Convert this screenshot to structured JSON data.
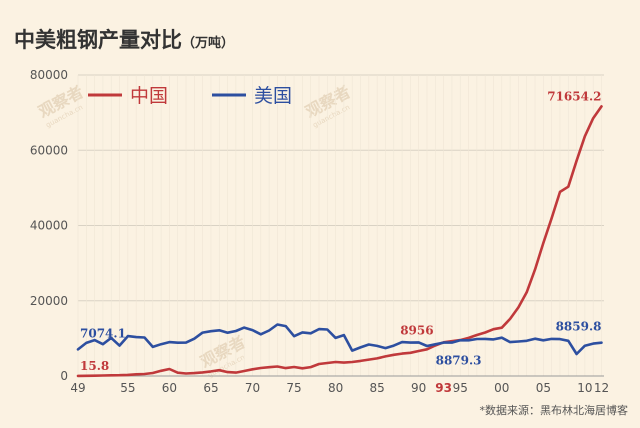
{
  "title": "中美粗钢产量对比",
  "unit": "（万吨）",
  "source": "*数据来源：黑布林北海居博客",
  "watermark": "观察者",
  "watermark_small": "guancha.cn",
  "chart_data": {
    "type": "line",
    "title": "中美粗钢产量对比",
    "xlabel": "",
    "ylabel": "",
    "ylim": [
      0,
      80000
    ],
    "yticks": [
      0,
      20000,
      40000,
      60000,
      80000
    ],
    "xtick_labels": [
      "49",
      "55",
      "60",
      "65",
      "70",
      "75",
      "80",
      "85",
      "90",
      "93",
      "95",
      "00",
      "05",
      "10",
      "12"
    ],
    "xticks": [
      1949,
      1955,
      1960,
      1965,
      1970,
      1975,
      1980,
      1985,
      1990,
      1993,
      1995,
      2000,
      2005,
      2010,
      2012
    ],
    "xlim": [
      1949,
      2012.3
    ],
    "grid": true,
    "legend_position": "top-left",
    "series": [
      {
        "name": "中国",
        "color": "#c0393b",
        "x": [
          1949,
          1950,
          1951,
          1952,
          1953,
          1954,
          1955,
          1956,
          1957,
          1958,
          1959,
          1960,
          1961,
          1962,
          1963,
          1964,
          1965,
          1966,
          1967,
          1968,
          1969,
          1970,
          1971,
          1972,
          1973,
          1974,
          1975,
          1976,
          1977,
          1978,
          1979,
          1980,
          1981,
          1982,
          1983,
          1984,
          1985,
          1986,
          1987,
          1988,
          1989,
          1990,
          1991,
          1992,
          1993,
          1994,
          1995,
          1996,
          1997,
          1998,
          1999,
          2000,
          2001,
          2002,
          2003,
          2004,
          2005,
          2006,
          2007,
          2008,
          2009,
          2010,
          2011,
          2012
        ],
        "values": [
          15.8,
          61,
          90,
          135,
          177,
          223,
          285,
          447,
          535,
          800,
          1387,
          1866,
          870,
          667,
          762,
          964,
          1223,
          1532,
          1029,
          904,
          1333,
          1779,
          2132,
          2338,
          2522,
          2112,
          2390,
          2046,
          2374,
          3178,
          3448,
          3712,
          3560,
          3716,
          4002,
          4347,
          4679,
          5221,
          5628,
          5943,
          6159,
          6635,
          7100,
          8094,
          8956,
          9261,
          9536,
          10124,
          10894,
          11559,
          12426,
          12850,
          15163,
          18225,
          22234,
          28291,
          35324,
          41915,
          48924,
          50305,
          57218,
          63723,
          68528,
          71654.2
        ]
      },
      {
        "name": "美国",
        "color": "#2d4fa0",
        "x": [
          1949,
          1950,
          1951,
          1952,
          1953,
          1954,
          1955,
          1956,
          1957,
          1958,
          1959,
          1960,
          1961,
          1962,
          1963,
          1964,
          1965,
          1966,
          1967,
          1968,
          1969,
          1970,
          1971,
          1972,
          1973,
          1974,
          1975,
          1976,
          1977,
          1978,
          1979,
          1980,
          1981,
          1982,
          1983,
          1984,
          1985,
          1986,
          1987,
          1988,
          1989,
          1990,
          1991,
          1992,
          1993,
          1994,
          1995,
          1996,
          1997,
          1998,
          1999,
          2000,
          2001,
          2002,
          2003,
          2004,
          2005,
          2006,
          2007,
          2008,
          2009,
          2010,
          2011,
          2012
        ],
        "values": [
          7074.1,
          8785,
          9543,
          8452,
          10125,
          8083,
          10617,
          10352,
          10227,
          7734,
          8444,
          9007,
          8859,
          8877,
          9906,
          11530,
          11920,
          12158,
          11500,
          11970,
          12876,
          12200,
          11080,
          12100,
          13680,
          13260,
          10590,
          11600,
          11340,
          12460,
          12360,
          10120,
          10860,
          6760,
          7610,
          8370,
          7990,
          7420,
          8070,
          9010,
          8870,
          8920,
          7980,
          8430,
          8879.3,
          8880,
          9500,
          9500,
          9840,
          9870,
          9740,
          10180,
          9010,
          9170,
          9360,
          9920,
          9490,
          9860,
          9820,
          9360,
          5840,
          8050,
          8620,
          8859.8
        ]
      }
    ],
    "data_labels": [
      {
        "series": "中国",
        "x": 1949,
        "text": "15.8"
      },
      {
        "series": "美国",
        "x": 1949,
        "text": "7074.1"
      },
      {
        "series": "中国",
        "x": 1993,
        "text": "8956"
      },
      {
        "series": "美国",
        "x": 1993,
        "text": "8879.3"
      },
      {
        "series": "中国",
        "x": 2012,
        "text": "71654.2"
      },
      {
        "series": "美国",
        "x": 2012,
        "text": "8859.8"
      }
    ]
  }
}
